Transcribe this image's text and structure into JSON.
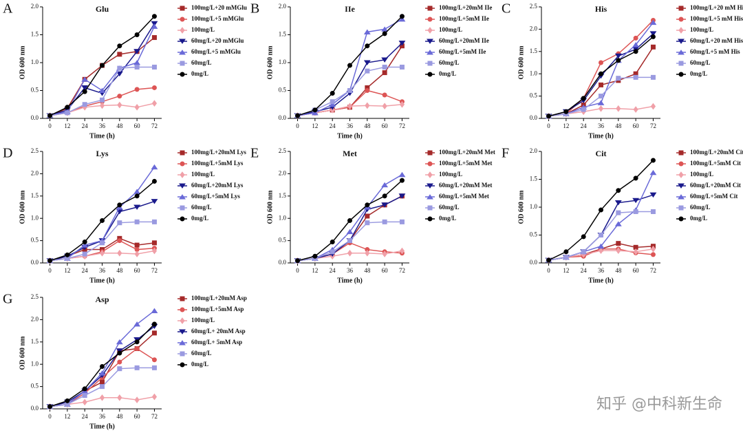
{
  "chart_data": [
    {
      "type": "line",
      "panel_label": "A",
      "title": "Glu",
      "x_label": "Time (h)",
      "y_label": "OD 600 nm",
      "x": [
        0,
        12,
        24,
        36,
        48,
        60,
        72
      ],
      "xlim": [
        -5,
        77
      ],
      "xticks": [
        0,
        12,
        24,
        36,
        48,
        60,
        72
      ],
      "ylim": [
        0,
        2
      ],
      "yticks": [
        {
          "value": 0,
          "label": "0.0"
        },
        0.5,
        {
          "value": 1,
          "label": "1.0"
        },
        1.5,
        {
          "value": 2,
          "label": "2.0"
        }
      ],
      "series": [
        {
          "name": "100mg/L+20 mMGlu",
          "color": "#a52a2a",
          "marker": "square",
          "values": [
            0.05,
            0.18,
            0.7,
            0.95,
            1.15,
            1.2,
            1.45
          ]
        },
        {
          "name": "100mg/L+5 mMGlu",
          "color": "#dd5555",
          "marker": "circle",
          "values": [
            0.05,
            0.1,
            0.22,
            0.3,
            0.4,
            0.52,
            0.55
          ]
        },
        {
          "name": "100mg/L",
          "color": "#f0a0a8",
          "marker": "diamond",
          "values": [
            0.05,
            0.1,
            0.2,
            0.23,
            0.24,
            0.2,
            0.27
          ]
        },
        {
          "name": "60mg/L+20 mMGlu",
          "color": "#1a1a8c",
          "marker": "tridown",
          "values": [
            0.05,
            0.15,
            0.55,
            0.45,
            0.8,
            1.2,
            1.7
          ]
        },
        {
          "name": "60mg/L+5 mMGlu",
          "color": "#6a6ad8",
          "marker": "triup",
          "values": [
            0.05,
            0.12,
            0.7,
            0.5,
            0.9,
            1.0,
            1.65
          ]
        },
        {
          "name": "60mg/L",
          "color": "#9a9ae0",
          "marker": "square",
          "values": [
            0.05,
            0.1,
            0.25,
            0.33,
            0.9,
            0.92,
            0.92
          ]
        },
        {
          "name": "0mg/L",
          "color": "#000000",
          "marker": "circle",
          "values": [
            0.05,
            0.2,
            0.48,
            0.95,
            1.3,
            1.5,
            1.83
          ]
        }
      ]
    },
    {
      "type": "line",
      "panel_label": "B",
      "title": "IIe",
      "x_label": "Time (h)",
      "y_label": "OD 600 nm",
      "x": [
        0,
        12,
        24,
        36,
        48,
        60,
        72
      ],
      "xlim": [
        -5,
        77
      ],
      "xticks": [
        0,
        12,
        24,
        36,
        48,
        60,
        72
      ],
      "ylim": [
        0,
        2
      ],
      "yticks": [
        {
          "value": 0,
          "label": "0.0"
        },
        0.5,
        {
          "value": 1,
          "label": "1.0"
        },
        1.5,
        {
          "value": 2,
          "label": "2.0"
        }
      ],
      "series": [
        {
          "name": "100mg/L+20mM IIe",
          "color": "#a52a2a",
          "marker": "square",
          "values": [
            0.05,
            0.1,
            0.15,
            0.2,
            0.55,
            0.82,
            1.3
          ]
        },
        {
          "name": "100mg/L+5mM IIe",
          "color": "#dd5555",
          "marker": "circle",
          "values": [
            0.05,
            0.1,
            0.15,
            0.2,
            0.5,
            0.42,
            0.3
          ]
        },
        {
          "name": "100mg/L",
          "color": "#f0a0a8",
          "marker": "diamond",
          "values": [
            0.05,
            0.1,
            0.15,
            0.22,
            0.23,
            0.22,
            0.25
          ]
        },
        {
          "name": "60mg/L+20mM IIe",
          "color": "#1a1a8c",
          "marker": "tridown",
          "values": [
            0.05,
            0.12,
            0.2,
            0.45,
            1.0,
            1.05,
            1.35
          ]
        },
        {
          "name": "60mg/L+5mM IIe",
          "color": "#6a6ad8",
          "marker": "triup",
          "values": [
            0.05,
            0.1,
            0.25,
            0.5,
            1.55,
            1.6,
            1.78
          ]
        },
        {
          "name": "60mg/L",
          "color": "#9a9ae0",
          "marker": "square",
          "values": [
            0.05,
            0.15,
            0.3,
            0.5,
            0.85,
            0.92,
            0.92
          ]
        },
        {
          "name": "0mg/L",
          "color": "#000000",
          "marker": "circle",
          "values": [
            0.05,
            0.15,
            0.45,
            0.95,
            1.3,
            1.52,
            1.83
          ]
        }
      ]
    },
    {
      "type": "line",
      "panel_label": "C",
      "title": "His",
      "x_label": "Time (h)",
      "y_label": "OD 600 nm",
      "x": [
        0,
        12,
        24,
        36,
        48,
        60,
        72
      ],
      "xlim": [
        -5,
        77
      ],
      "xticks": [
        0,
        12,
        24,
        36,
        48,
        60,
        72
      ],
      "ylim": [
        0,
        2.5
      ],
      "yticks": [
        {
          "value": 0,
          "label": "0.0"
        },
        0.5,
        {
          "value": 1,
          "label": "1.0"
        },
        1.5,
        {
          "value": 2,
          "label": "2.0"
        },
        2.5
      ],
      "series": [
        {
          "name": "100mg/L+20 mM His",
          "color": "#a52a2a",
          "marker": "square",
          "values": [
            0.05,
            0.1,
            0.3,
            0.75,
            0.85,
            1.0,
            1.6
          ]
        },
        {
          "name": "100mg/L+5 mM His",
          "color": "#dd5555",
          "marker": "circle",
          "values": [
            0.05,
            0.1,
            0.45,
            1.25,
            1.45,
            1.8,
            2.2
          ]
        },
        {
          "name": "100mg/L",
          "color": "#f0a0a8",
          "marker": "diamond",
          "values": [
            0.05,
            0.1,
            0.15,
            0.22,
            0.22,
            0.2,
            0.27
          ]
        },
        {
          "name": "60mg/L+20 mM His",
          "color": "#1a1a8c",
          "marker": "tridown",
          "values": [
            0.05,
            0.15,
            0.4,
            0.95,
            1.4,
            1.55,
            1.9
          ]
        },
        {
          "name": "60mg/L+5 mM His",
          "color": "#6a6ad8",
          "marker": "triup",
          "values": [
            0.05,
            0.1,
            0.25,
            0.35,
            1.3,
            1.65,
            2.15
          ]
        },
        {
          "name": "60mg/L",
          "color": "#9a9ae0",
          "marker": "square",
          "values": [
            0.05,
            0.1,
            0.2,
            0.5,
            0.9,
            0.92,
            0.92
          ]
        },
        {
          "name": "0mg/L",
          "color": "#000000",
          "marker": "circle",
          "values": [
            0.05,
            0.15,
            0.45,
            1.0,
            1.3,
            1.5,
            1.83
          ]
        }
      ]
    },
    {
      "type": "line",
      "panel_label": "D",
      "title": "Lys",
      "x_label": "Time (h)",
      "y_label": "OD 600 nm",
      "x": [
        0,
        12,
        24,
        36,
        48,
        60,
        72
      ],
      "xlim": [
        -5,
        77
      ],
      "xticks": [
        0,
        12,
        24,
        36,
        48,
        60,
        72
      ],
      "ylim": [
        0,
        2.5
      ],
      "yticks": [
        {
          "value": 0,
          "label": "0.0"
        },
        0.5,
        {
          "value": 1,
          "label": "1.0"
        },
        1.5,
        {
          "value": 2,
          "label": "2.0"
        },
        2.5
      ],
      "series": [
        {
          "name": "100mg/L+20mM Lys",
          "color": "#a52a2a",
          "marker": "square",
          "values": [
            0.05,
            0.15,
            0.3,
            0.3,
            0.55,
            0.4,
            0.45
          ]
        },
        {
          "name": "100mg/L+5mM Lys",
          "color": "#dd5555",
          "marker": "circle",
          "values": [
            0.05,
            0.1,
            0.15,
            0.25,
            0.5,
            0.3,
            0.33
          ]
        },
        {
          "name": "100mg/L",
          "color": "#f0a0a8",
          "marker": "diamond",
          "values": [
            0.05,
            0.1,
            0.15,
            0.22,
            0.22,
            0.2,
            0.27
          ]
        },
        {
          "name": "60mg/L+20mM Lys",
          "color": "#1a1a8c",
          "marker": "tridown",
          "values": [
            0.05,
            0.15,
            0.35,
            0.5,
            1.15,
            1.25,
            1.38
          ]
        },
        {
          "name": "60mg/L+5mM Lys",
          "color": "#6a6ad8",
          "marker": "triup",
          "values": [
            0.05,
            0.1,
            0.4,
            0.5,
            1.25,
            1.6,
            2.15
          ]
        },
        {
          "name": "60mg/L",
          "color": "#9a9ae0",
          "marker": "square",
          "values": [
            0.05,
            0.1,
            0.2,
            0.45,
            0.9,
            0.92,
            0.92
          ]
        },
        {
          "name": "0mg/L",
          "color": "#000000",
          "marker": "circle",
          "values": [
            0.05,
            0.18,
            0.47,
            0.95,
            1.3,
            1.5,
            1.83
          ]
        }
      ]
    },
    {
      "type": "line",
      "panel_label": "E",
      "title": "Met",
      "x_label": "Time (h)",
      "y_label": "OD 600 nm",
      "x": [
        0,
        12,
        24,
        36,
        48,
        60,
        72
      ],
      "xlim": [
        -5,
        77
      ],
      "xticks": [
        0,
        12,
        24,
        36,
        48,
        60,
        72
      ],
      "ylim": [
        0,
        2.5
      ],
      "yticks": [
        {
          "value": 0,
          "label": "0.0"
        },
        0.5,
        {
          "value": 1,
          "label": "1.0"
        },
        1.5,
        {
          "value": 2,
          "label": "2.0"
        },
        2.5
      ],
      "series": [
        {
          "name": "100mg/L+20mM Met",
          "color": "#a52a2a",
          "marker": "square",
          "values": [
            0.05,
            0.1,
            0.2,
            0.5,
            1.05,
            1.3,
            1.5
          ]
        },
        {
          "name": "100mg/L+5mM Met",
          "color": "#dd5555",
          "marker": "circle",
          "values": [
            0.05,
            0.1,
            0.2,
            0.45,
            0.3,
            0.25,
            0.22
          ]
        },
        {
          "name": "100mg/L",
          "color": "#f0a0a8",
          "marker": "diamond",
          "values": [
            0.05,
            0.1,
            0.15,
            0.22,
            0.22,
            0.2,
            0.27
          ]
        },
        {
          "name": "60mg/L+20mM Met",
          "color": "#1a1a8c",
          "marker": "tridown",
          "values": [
            0.05,
            0.1,
            0.2,
            0.5,
            1.2,
            1.3,
            1.5
          ]
        },
        {
          "name": "60mg/L+5mM Met",
          "color": "#6a6ad8",
          "marker": "triup",
          "values": [
            0.05,
            0.1,
            0.3,
            0.7,
            1.25,
            1.75,
            1.98
          ]
        },
        {
          "name": "60mg/L",
          "color": "#9a9ae0",
          "marker": "square",
          "values": [
            0.05,
            0.1,
            0.25,
            0.5,
            0.9,
            0.92,
            0.92
          ]
        },
        {
          "name": "0mg/L",
          "color": "#000000",
          "marker": "circle",
          "values": [
            0.05,
            0.15,
            0.47,
            0.95,
            1.3,
            1.5,
            1.85
          ]
        }
      ]
    },
    {
      "type": "line",
      "panel_label": "F",
      "title": "Cit",
      "x_label": "Time (h)",
      "y_label": "OD 600 nm",
      "x": [
        0,
        12,
        24,
        36,
        48,
        60,
        72
      ],
      "xlim": [
        -5,
        77
      ],
      "xticks": [
        0,
        12,
        24,
        36,
        48,
        60,
        72
      ],
      "ylim": [
        0,
        2
      ],
      "yticks": [
        {
          "value": 0,
          "label": "0.0"
        },
        0.5,
        {
          "value": 1,
          "label": "1.0"
        },
        1.5,
        {
          "value": 2,
          "label": "2.0"
        }
      ],
      "series": [
        {
          "name": "100mg/L+20mM Cit",
          "color": "#a52a2a",
          "marker": "square",
          "values": [
            0.05,
            0.1,
            0.15,
            0.25,
            0.35,
            0.28,
            0.3
          ]
        },
        {
          "name": "100mg/L+5mM Cit",
          "color": "#dd5555",
          "marker": "circle",
          "values": [
            0.05,
            0.1,
            0.12,
            0.25,
            0.25,
            0.18,
            0.15
          ]
        },
        {
          "name": "100mg/L",
          "color": "#f0a0a8",
          "marker": "diamond",
          "values": [
            0.05,
            0.1,
            0.15,
            0.22,
            0.22,
            0.2,
            0.25
          ]
        },
        {
          "name": "60mg/L+20mM Cit",
          "color": "#1a1a8c",
          "marker": "tridown",
          "values": [
            0.05,
            0.1,
            0.2,
            0.5,
            1.08,
            1.12,
            1.22
          ]
        },
        {
          "name": "60mg/L+5mM Cit",
          "color": "#6a6ad8",
          "marker": "triup",
          "values": [
            0.05,
            0.1,
            0.2,
            0.3,
            0.7,
            0.95,
            1.62
          ]
        },
        {
          "name": "60mg/L",
          "color": "#9a9ae0",
          "marker": "square",
          "values": [
            0.05,
            0.1,
            0.2,
            0.5,
            0.9,
            0.92,
            0.92
          ]
        },
        {
          "name": "0mg/L",
          "color": "#000000",
          "marker": "circle",
          "values": [
            0.05,
            0.2,
            0.47,
            0.95,
            1.3,
            1.52,
            1.84
          ]
        }
      ]
    },
    {
      "type": "line",
      "panel_label": "G",
      "title": "Asp",
      "x_label": "Time (h)",
      "y_label": "OD 600 nm",
      "x": [
        0,
        12,
        24,
        36,
        48,
        60,
        72
      ],
      "xlim": [
        -5,
        77
      ],
      "xticks": [
        0,
        12,
        24,
        36,
        48,
        60,
        72
      ],
      "ylim": [
        0,
        2.5
      ],
      "yticks": [
        {
          "value": 0,
          "label": "0.0"
        },
        0.5,
        {
          "value": 1,
          "label": "1.0"
        },
        1.5,
        {
          "value": 2,
          "label": "2.0"
        },
        2.5
      ],
      "series": [
        {
          "name": "100mg/L+20mM Asp",
          "color": "#a52a2a",
          "marker": "square",
          "values": [
            0.05,
            0.1,
            0.4,
            0.6,
            1.3,
            1.35,
            1.7
          ]
        },
        {
          "name": "100mg/L+5mM Asp",
          "color": "#dd5555",
          "marker": "circle",
          "values": [
            0.05,
            0.1,
            0.35,
            0.7,
            1.05,
            1.35,
            1.1
          ]
        },
        {
          "name": "100mg/L",
          "color": "#f0a0a8",
          "marker": "diamond",
          "values": [
            0.05,
            0.1,
            0.15,
            0.25,
            0.25,
            0.2,
            0.27
          ]
        },
        {
          "name": "60mg/L+ 20mM Asp",
          "color": "#1a1a8c",
          "marker": "tridown",
          "values": [
            0.05,
            0.15,
            0.4,
            0.75,
            1.3,
            1.55,
            1.85
          ]
        },
        {
          "name": "60mg/L+ 5mM Asp",
          "color": "#6a6ad8",
          "marker": "triup",
          "values": [
            0.05,
            0.1,
            0.4,
            0.8,
            1.5,
            1.9,
            2.2
          ]
        },
        {
          "name": "60mg/L",
          "color": "#9a9ae0",
          "marker": "square",
          "values": [
            0.05,
            0.1,
            0.3,
            0.5,
            0.9,
            0.92,
            0.92
          ]
        },
        {
          "name": "0mg/L",
          "color": "#000000",
          "marker": "circle",
          "values": [
            0.05,
            0.18,
            0.45,
            0.95,
            1.25,
            1.5,
            1.9
          ]
        }
      ]
    }
  ],
  "watermark": "知乎 @中科新生命"
}
